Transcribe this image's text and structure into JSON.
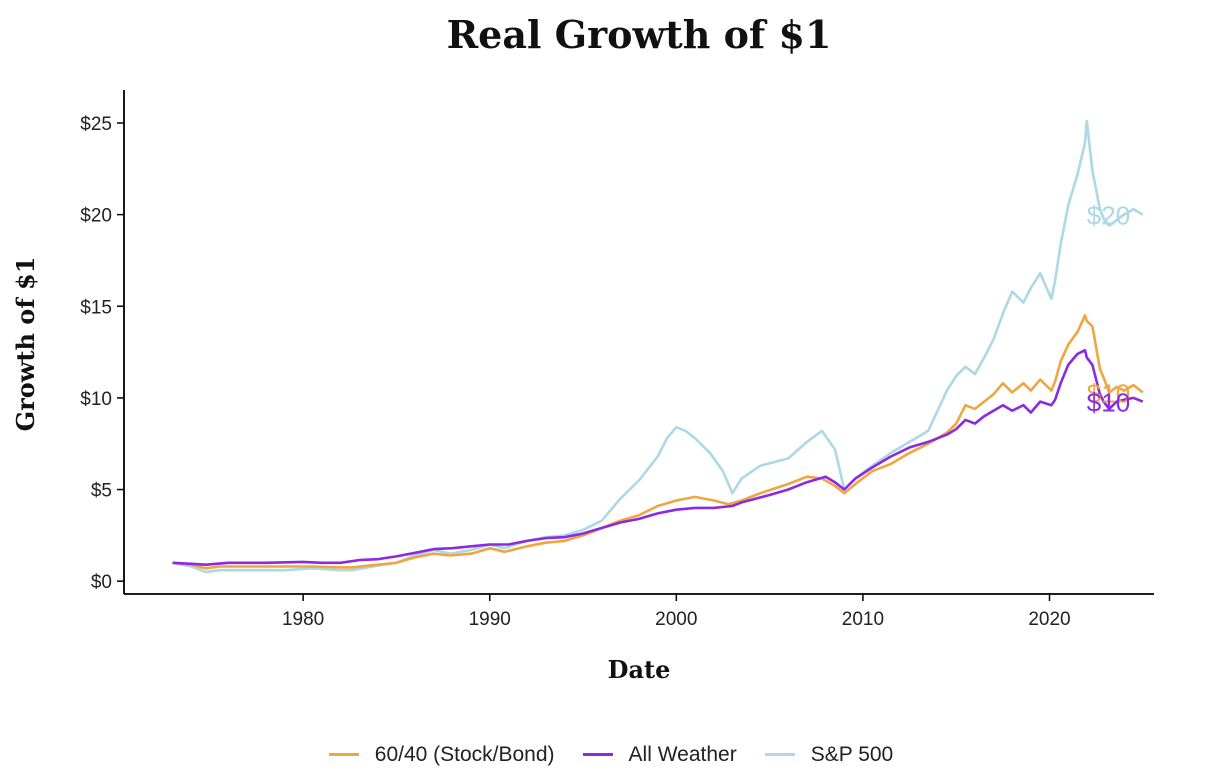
{
  "chart_data": {
    "type": "line",
    "title": "Real Growth of $1",
    "xlabel": "Date",
    "ylabel": "Growth of $1",
    "xlim": [
      1970.4,
      2025.6
    ],
    "ylim": [
      -0.7,
      26.8
    ],
    "x_ticks": [
      1980,
      1990,
      2000,
      2010,
      2020
    ],
    "x_tick_labels": [
      "1980",
      "1990",
      "2000",
      "2010",
      "2020"
    ],
    "y_ticks": [
      0,
      5,
      10,
      15,
      20,
      25
    ],
    "y_tick_labels": [
      "$0",
      "$5",
      "$10",
      "$15",
      "$20",
      "$25"
    ],
    "grid": false,
    "legend": "bottom",
    "series": [
      {
        "name": "60/40 (Stock/Bond)",
        "color": "#F0A640",
        "end_label": "$10",
        "x": [
          1973.0,
          1974.0,
          1974.8,
          1975.5,
          1977,
          1979,
          1980.5,
          1982,
          1982.6,
          1984,
          1985,
          1986,
          1987,
          1987.9,
          1989,
          1990,
          1990.8,
          1992,
          1993,
          1994,
          1995,
          1996,
          1997,
          1998,
          1999,
          2000,
          2001,
          2002,
          2002.8,
          2003.5,
          2004.5,
          2006,
          2007,
          2007.8,
          2008.5,
          2009.0,
          2009.6,
          2010.5,
          2011.5,
          2012.5,
          2013.5,
          2014.5,
          2015.0,
          2015.5,
          2016.0,
          2016.5,
          2017,
          2017.5,
          2018.0,
          2018.6,
          2019.0,
          2019.5,
          2020.1,
          2020.3,
          2020.6,
          2021.0,
          2021.5,
          2021.9,
          2022.0,
          2022.3,
          2022.7,
          2022.9,
          2023.2,
          2023.6,
          2024.0,
          2024.5,
          2025.0
        ],
        "values": [
          1.0,
          0.9,
          0.7,
          0.8,
          0.8,
          0.8,
          0.8,
          0.75,
          0.75,
          0.9,
          1.0,
          1.3,
          1.5,
          1.4,
          1.5,
          1.8,
          1.6,
          1.9,
          2.1,
          2.2,
          2.5,
          2.9,
          3.3,
          3.6,
          4.1,
          4.4,
          4.6,
          4.4,
          4.2,
          4.4,
          4.8,
          5.3,
          5.7,
          5.6,
          5.2,
          4.8,
          5.3,
          6.0,
          6.4,
          7.0,
          7.5,
          8.1,
          8.6,
          9.6,
          9.4,
          9.8,
          10.2,
          10.8,
          10.3,
          10.8,
          10.4,
          11.0,
          10.4,
          10.9,
          12.0,
          12.9,
          13.6,
          14.5,
          14.2,
          13.9,
          11.6,
          11.1,
          10.3,
          10.6,
          10.4,
          10.7,
          10.3
        ]
      },
      {
        "name": "All Weather",
        "color": "#8A2BE2",
        "end_label": "$10",
        "x": [
          1973.0,
          1974.0,
          1974.8,
          1976,
          1978,
          1980,
          1981,
          1982,
          1983,
          1984,
          1985,
          1986,
          1987,
          1988,
          1989,
          1990,
          1991,
          1992,
          1993,
          1994,
          1995,
          1996,
          1997,
          1998,
          1999,
          2000,
          2001,
          2002,
          2003,
          2003.5,
          2005,
          2006,
          2007,
          2008,
          2008.5,
          2009,
          2009.6,
          2010.5,
          2011.5,
          2012.5,
          2013.5,
          2014.5,
          2015.0,
          2015.5,
          2016.0,
          2016.5,
          2017,
          2017.5,
          2018.0,
          2018.6,
          2019.0,
          2019.5,
          2020.1,
          2020.3,
          2020.6,
          2021.0,
          2021.5,
          2021.9,
          2022.0,
          2022.3,
          2022.7,
          2022.9,
          2023.2,
          2023.6,
          2024.0,
          2024.5,
          2025.0
        ],
        "values": [
          1.0,
          0.95,
          0.9,
          1.0,
          1.0,
          1.05,
          1.0,
          1.0,
          1.15,
          1.2,
          1.35,
          1.55,
          1.75,
          1.8,
          1.9,
          2.0,
          2.0,
          2.2,
          2.35,
          2.4,
          2.6,
          2.9,
          3.2,
          3.4,
          3.7,
          3.9,
          4.0,
          4.0,
          4.1,
          4.3,
          4.7,
          5.0,
          5.4,
          5.7,
          5.4,
          5.0,
          5.6,
          6.2,
          6.8,
          7.3,
          7.6,
          8.0,
          8.3,
          8.8,
          8.6,
          9.0,
          9.3,
          9.6,
          9.3,
          9.6,
          9.2,
          9.8,
          9.6,
          9.9,
          10.8,
          11.8,
          12.4,
          12.6,
          12.2,
          11.8,
          10.2,
          9.8,
          9.4,
          9.8,
          9.9,
          10.0,
          9.8
        ]
      },
      {
        "name": "S&P 500",
        "color": "#ADD8E6",
        "end_label": "$20",
        "x": [
          1973.0,
          1974.0,
          1974.8,
          1975.5,
          1977,
          1979,
          1980.5,
          1982,
          1982.6,
          1984,
          1985,
          1986,
          1987,
          1987.9,
          1989,
          1990,
          1990.8,
          1992,
          1993,
          1994,
          1995,
          1996,
          1997,
          1998,
          1999,
          1999.5,
          2000.0,
          2000.5,
          2001.0,
          2001.8,
          2002.5,
          2003.0,
          2003.5,
          2004.5,
          2006,
          2007,
          2007.8,
          2008.5,
          2009.0,
          2009.6,
          2010.5,
          2011.5,
          2012.5,
          2013.5,
          2014.5,
          2015.0,
          2015.5,
          2016.0,
          2016.5,
          2017,
          2017.5,
          2018.0,
          2018.6,
          2019.0,
          2019.5,
          2020.1,
          2020.3,
          2020.6,
          2021.0,
          2021.5,
          2021.9,
          2022.0,
          2022.3,
          2022.7,
          2022.9,
          2023.2,
          2023.6,
          2024.0,
          2024.5,
          2025.0
        ],
        "values": [
          1.0,
          0.8,
          0.5,
          0.6,
          0.6,
          0.6,
          0.7,
          0.6,
          0.6,
          0.85,
          1.0,
          1.4,
          1.7,
          1.5,
          1.7,
          2.0,
          1.8,
          2.2,
          2.4,
          2.5,
          2.8,
          3.3,
          4.5,
          5.5,
          6.8,
          7.8,
          8.4,
          8.2,
          7.8,
          7.0,
          6.0,
          4.8,
          5.6,
          6.3,
          6.7,
          7.6,
          8.2,
          7.2,
          5.0,
          5.6,
          6.3,
          7.0,
          7.6,
          8.2,
          10.4,
          11.2,
          11.7,
          11.3,
          12.2,
          13.2,
          14.6,
          15.8,
          15.2,
          16.0,
          16.8,
          15.4,
          16.4,
          18.4,
          20.5,
          22.2,
          23.9,
          25.1,
          22.4,
          20.3,
          19.8,
          19.4,
          19.7,
          20.0,
          20.3,
          20.0
        ]
      }
    ]
  }
}
